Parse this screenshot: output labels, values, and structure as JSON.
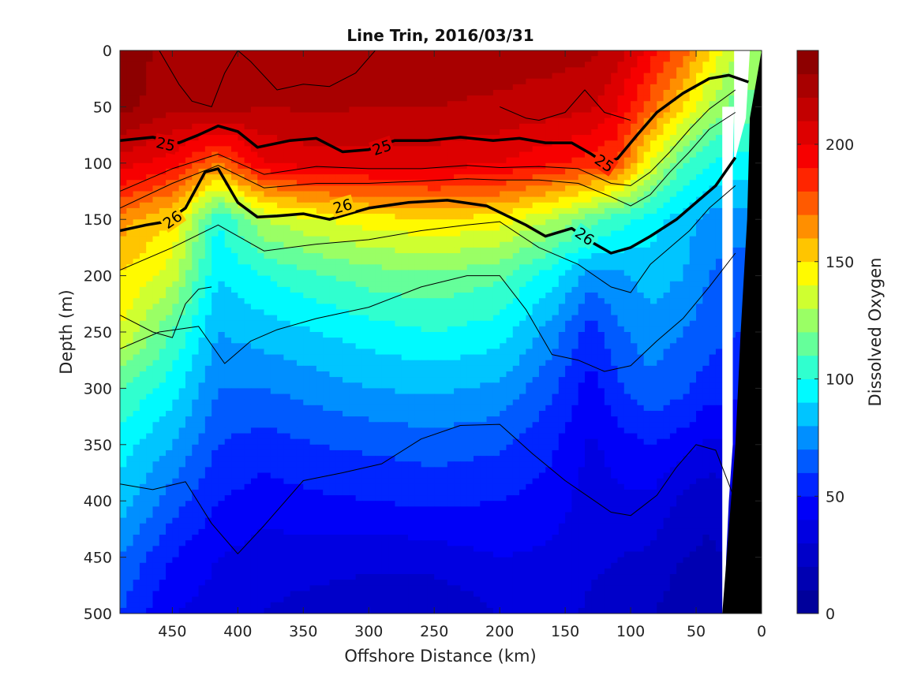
{
  "chart_data": {
    "type": "heatmap",
    "title": "Line Trin, 2016/03/31",
    "xlabel": "Offshore Distance (km)",
    "ylabel": "Depth (m)",
    "colorbar_label": "Dissolved Oxygen",
    "xlim": [
      490,
      0
    ],
    "ylim": [
      0,
      500
    ],
    "x_reversed": true,
    "y_reversed": true,
    "x_ticks": [
      450,
      400,
      350,
      300,
      250,
      200,
      150,
      100,
      50,
      0
    ],
    "y_ticks": [
      0,
      50,
      100,
      150,
      200,
      250,
      300,
      350,
      400,
      450,
      500
    ],
    "colorbar_range": [
      0,
      240
    ],
    "colorbar_ticks": [
      0,
      50,
      100,
      150,
      200
    ],
    "colorbar_levels": 24,
    "colormap": [
      "#00008f",
      "#0000ff",
      "#00ffff",
      "#ffff00",
      "#ff0000",
      "#800000"
    ],
    "field": {
      "x": [
        490,
        450,
        415,
        380,
        340,
        300,
        250,
        200,
        160,
        130,
        110,
        85,
        60,
        40,
        20
      ],
      "y": [
        0,
        50,
        100,
        150,
        200,
        250,
        300,
        350,
        400,
        450,
        500
      ],
      "values": [
        [
          238,
          225,
          228,
          225,
          228,
          225,
          226,
          225,
          224,
          222,
          215,
          195,
          175,
          150,
          130
        ],
        [
          235,
          222,
          225,
          220,
          222,
          220,
          220,
          218,
          215,
          212,
          200,
          175,
          150,
          130,
          115
        ],
        [
          205,
          195,
          170,
          200,
          205,
          205,
          205,
          200,
          192,
          185,
          180,
          140,
          110,
          100,
          95
        ],
        [
          165,
          150,
          100,
          130,
          140,
          145,
          150,
          145,
          130,
          115,
          105,
          95,
          85,
          75,
          75
        ],
        [
          150,
          135,
          90,
          100,
          108,
          115,
          118,
          112,
          95,
          75,
          78,
          85,
          80,
          70,
          65
        ],
        [
          140,
          110,
          80,
          85,
          90,
          95,
          100,
          95,
          75,
          55,
          68,
          75,
          70,
          65,
          60
        ],
        [
          110,
          95,
          70,
          70,
          75,
          80,
          82,
          78,
          62,
          45,
          58,
          68,
          62,
          55,
          52
        ],
        [
          95,
          80,
          60,
          55,
          60,
          62,
          65,
          62,
          52,
          38,
          45,
          50,
          45,
          38,
          40
        ],
        [
          85,
          65,
          50,
          45,
          48,
          50,
          52,
          50,
          45,
          35,
          38,
          38,
          28,
          22,
          30
        ],
        [
          70,
          50,
          40,
          35,
          35,
          32,
          35,
          40,
          38,
          32,
          30,
          28,
          20,
          18,
          22
        ],
        [
          60,
          40,
          35,
          30,
          25,
          25,
          20,
          30,
          35,
          28,
          25,
          22,
          12,
          15,
          20
        ]
      ]
    },
    "isopycnals_labeled": [
      {
        "label": "25",
        "x": [
          490,
          465,
          445,
          430,
          415,
          400,
          385,
          360,
          340,
          320,
          300,
          280,
          255,
          230,
          205,
          185,
          165,
          145,
          130,
          120,
          110,
          95,
          80,
          60,
          40,
          25,
          10
        ],
        "y": [
          80,
          77,
          82,
          75,
          67,
          72,
          86,
          80,
          78,
          90,
          88,
          80,
          80,
          77,
          80,
          78,
          82,
          82,
          92,
          100,
          96,
          75,
          55,
          38,
          25,
          22,
          28
        ],
        "label_positions": [
          [
            455,
            83
          ],
          [
            290,
            86
          ],
          [
            120,
            100
          ]
        ]
      },
      {
        "label": "26",
        "x": [
          490,
          470,
          455,
          440,
          425,
          415,
          400,
          385,
          370,
          350,
          330,
          300,
          270,
          240,
          210,
          180,
          165,
          145,
          130,
          115,
          100,
          85,
          65,
          50,
          35,
          20
        ],
        "y": [
          160,
          155,
          152,
          140,
          108,
          105,
          135,
          148,
          147,
          145,
          150,
          140,
          135,
          133,
          138,
          155,
          165,
          158,
          170,
          180,
          175,
          165,
          150,
          135,
          120,
          95
        ],
        "label_positions": [
          [
            450,
            150
          ],
          [
            320,
            138
          ],
          [
            135,
            165
          ]
        ]
      }
    ],
    "isopycnals_thin": [
      {
        "x": [
          490,
          450,
          415,
          380,
          340,
          300,
          260,
          225,
          200,
          170,
          140,
          115,
          100,
          85,
          70,
          55,
          40,
          20
        ],
        "y": [
          125,
          105,
          92,
          110,
          103,
          105,
          105,
          102,
          104,
          103,
          105,
          118,
          120,
          108,
          90,
          70,
          52,
          35
        ]
      },
      {
        "x": [
          490,
          450,
          415,
          380,
          340,
          300,
          260,
          225,
          200,
          170,
          140,
          115,
          100,
          85,
          70,
          55,
          40,
          20
        ],
        "y": [
          140,
          118,
          102,
          122,
          118,
          118,
          116,
          114,
          115,
          115,
          118,
          130,
          138,
          128,
          108,
          90,
          70,
          55
        ]
      },
      {
        "x": [
          490,
          450,
          415,
          380,
          340,
          300,
          260,
          225,
          200,
          170,
          140,
          115,
          100,
          85,
          70,
          55,
          40,
          20
        ],
        "y": [
          195,
          175,
          155,
          178,
          172,
          168,
          160,
          155,
          152,
          175,
          190,
          210,
          215,
          190,
          175,
          160,
          140,
          120
        ]
      },
      {
        "x": [
          490,
          460,
          430,
          410,
          390,
          370,
          340,
          300,
          260,
          225,
          200,
          180,
          160,
          140,
          120,
          100,
          80,
          60,
          40,
          20
        ],
        "y": [
          265,
          250,
          245,
          278,
          258,
          248,
          238,
          228,
          210,
          200,
          200,
          230,
          270,
          275,
          285,
          280,
          258,
          238,
          210,
          180
        ]
      },
      {
        "x": [
          490,
          465,
          440,
          420,
          400,
          380,
          350,
          320,
          290,
          260,
          230,
          200,
          175,
          150,
          130,
          115,
          100,
          80,
          65,
          50,
          35,
          20
        ],
        "y": [
          385,
          390,
          383,
          420,
          447,
          422,
          382,
          375,
          367,
          345,
          333,
          332,
          358,
          382,
          398,
          410,
          413,
          395,
          370,
          350,
          355,
          400
        ]
      },
      {
        "x": [
          490,
          465,
          450,
          440,
          430,
          420
        ],
        "y": [
          235,
          250,
          255,
          225,
          212,
          210
        ]
      },
      {
        "x": [
          460,
          445,
          435,
          420,
          410,
          400,
          390,
          370,
          350,
          330,
          310,
          295
        ],
        "y": [
          0,
          30,
          45,
          50,
          20,
          0,
          10,
          35,
          30,
          32,
          20,
          0
        ]
      },
      {
        "x": [
          200,
          180,
          170,
          150,
          135,
          120,
          100
        ],
        "y": [
          50,
          60,
          62,
          55,
          35,
          55,
          62
        ]
      }
    ],
    "bathymetry": {
      "fill": "#000000",
      "x": [
        30,
        20,
        16,
        11,
        9,
        0,
        0
      ],
      "y": [
        500,
        350,
        250,
        150,
        60,
        0,
        500
      ]
    },
    "nodata_gaps": [
      {
        "x": [
          21,
          30,
          30,
          28,
          27,
          25,
          22,
          22
        ],
        "y": [
          50,
          50,
          500,
          490,
          450,
          400,
          350,
          100
        ]
      },
      {
        "x": [
          9,
          21,
          21,
          12
        ],
        "y": [
          0,
          0,
          100,
          60
        ]
      }
    ]
  }
}
